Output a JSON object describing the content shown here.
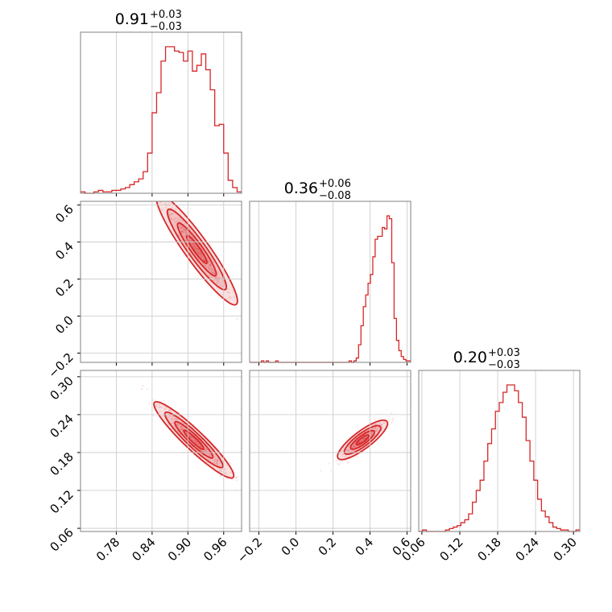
{
  "chart_data": {
    "type": "corner",
    "color": "#d62728",
    "grid": true,
    "params": [
      {
        "median": 0.91,
        "plus": 0.03,
        "minus": 0.03,
        "title_main": "0.91",
        "title_plus": "+0.03",
        "title_minus": "−0.03",
        "range": [
          0.72,
          0.99
        ],
        "ticks": [
          0.78,
          0.84,
          0.9,
          0.96
        ],
        "tick_labels": [
          "0.78",
          "0.84",
          "0.90",
          "0.96"
        ]
      },
      {
        "median": 0.36,
        "plus": 0.06,
        "minus": 0.08,
        "title_main": "0.36",
        "title_plus": "+0.06",
        "title_minus": "−0.08",
        "range": [
          -0.25,
          0.62
        ],
        "ticks": [
          -0.2,
          0.0,
          0.2,
          0.4,
          0.6
        ],
        "tick_labels": [
          "−0.2",
          "0.0",
          "0.2",
          "0.4",
          "0.6"
        ]
      },
      {
        "median": 0.2,
        "plus": 0.03,
        "minus": 0.03,
        "title_main": "0.20",
        "title_plus": "+0.03",
        "title_minus": "−0.03",
        "range": [
          0.055,
          0.31
        ],
        "ticks": [
          0.06,
          0.12,
          0.18,
          0.24,
          0.3
        ],
        "tick_labels": [
          "0.06",
          "0.12",
          "0.18",
          "0.24",
          "0.30"
        ]
      }
    ],
    "histograms": [
      {
        "param": 0,
        "bins": [
          0.72,
          0.99
        ],
        "counts": [
          1,
          0,
          0,
          1,
          2,
          1,
          1,
          2,
          2,
          3,
          4,
          6,
          8,
          10,
          15,
          28,
          56,
          70,
          92,
          102,
          102,
          99,
          98,
          92,
          99,
          85,
          89,
          97,
          86,
          72,
          47,
          48,
          28,
          9,
          4,
          1
        ]
      },
      {
        "param": 1,
        "bins": [
          -0.25,
          0.62
        ],
        "counts": [
          0,
          0,
          0,
          0,
          0,
          1,
          0,
          1,
          0,
          0,
          0,
          1,
          0,
          0,
          0,
          0,
          0,
          0,
          0,
          0,
          0,
          0,
          0,
          0,
          0,
          0,
          0,
          0,
          0,
          0,
          0,
          0,
          0,
          0,
          0,
          0,
          0,
          0,
          0,
          0,
          0,
          0,
          1,
          0,
          1,
          3,
          12,
          25,
          38,
          46,
          54,
          60,
          72,
          84,
          86,
          86,
          92,
          91,
          100,
          98,
          68,
          30,
          15,
          8,
          4,
          2,
          1,
          1
        ]
      },
      {
        "param": 2,
        "bins": [
          0.055,
          0.31
        ],
        "counts": [
          0,
          1,
          0,
          0,
          0,
          0,
          0,
          1,
          2,
          3,
          4,
          6,
          8,
          12,
          20,
          28,
          35,
          48,
          60,
          70,
          82,
          88,
          95,
          100,
          100,
          96,
          88,
          78,
          62,
          48,
          35,
          22,
          14,
          10,
          6,
          3,
          2,
          1,
          1,
          0,
          0,
          1
        ]
      }
    ],
    "pairs": [
      {
        "x_param": 0,
        "y_param": 1,
        "contour_center": [
          0.915,
          0.36
        ],
        "slope": -4.5
      },
      {
        "x_param": 0,
        "y_param": 2,
        "contour_center": [
          0.91,
          0.2
        ],
        "slope": -0.9
      },
      {
        "x_param": 1,
        "y_param": 2,
        "contour_center": [
          0.36,
          0.2
        ],
        "slope": 0.22
      }
    ]
  }
}
